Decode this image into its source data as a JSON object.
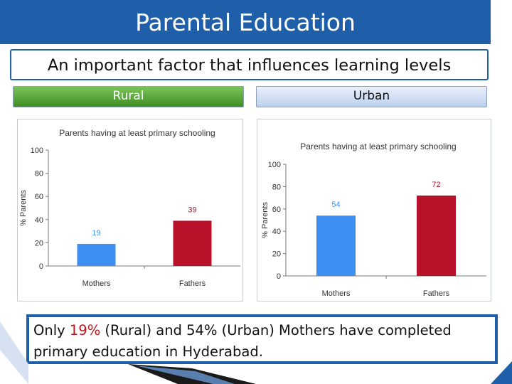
{
  "slide": {
    "title": "Parental Education",
    "subtitle": "An important factor that influences learning levels",
    "headers": {
      "rural": "Rural",
      "urban": "Urban"
    },
    "note": {
      "part1": "Only ",
      "highlight": "19%",
      "part2": " (Rural) and 54% (Urban) Mothers have completed primary education in Hyderabad."
    },
    "colors": {
      "title_bar": "#1f5ea8",
      "mothers_bar": "#3d8ef0",
      "fathers_bar": "#b8122a",
      "highlight": "#c0141b"
    }
  },
  "chart_data": [
    {
      "type": "bar",
      "title": "Parents having at least primary schooling",
      "xlabel": "",
      "ylabel": "% Parents",
      "categories": [
        "Mothers",
        "Fathers"
      ],
      "values": [
        19,
        39
      ],
      "data_labels": [
        "19",
        "39"
      ],
      "colors": [
        "#3d8ef0",
        "#b8122a"
      ],
      "ylim": [
        0,
        100
      ],
      "yticks": [
        0,
        20,
        40,
        60,
        80,
        100
      ],
      "ytick_labels": [
        "0",
        "20",
        "40",
        "60",
        "80",
        "100"
      ],
      "grid": false
    },
    {
      "type": "bar",
      "title": "Parents having at least primary schooling",
      "xlabel": "",
      "ylabel": "% Parents",
      "categories": [
        "Mothers",
        "Fathers"
      ],
      "values": [
        54,
        72
      ],
      "data_labels": [
        "54",
        "72"
      ],
      "colors": [
        "#3d8ef0",
        "#b8122a"
      ],
      "ylim": [
        0,
        100
      ],
      "yticks": [
        0,
        20,
        40,
        60,
        80,
        100
      ],
      "ytick_labels": [
        "0",
        "20",
        "40",
        "60",
        "80",
        "100"
      ],
      "grid": false
    }
  ]
}
